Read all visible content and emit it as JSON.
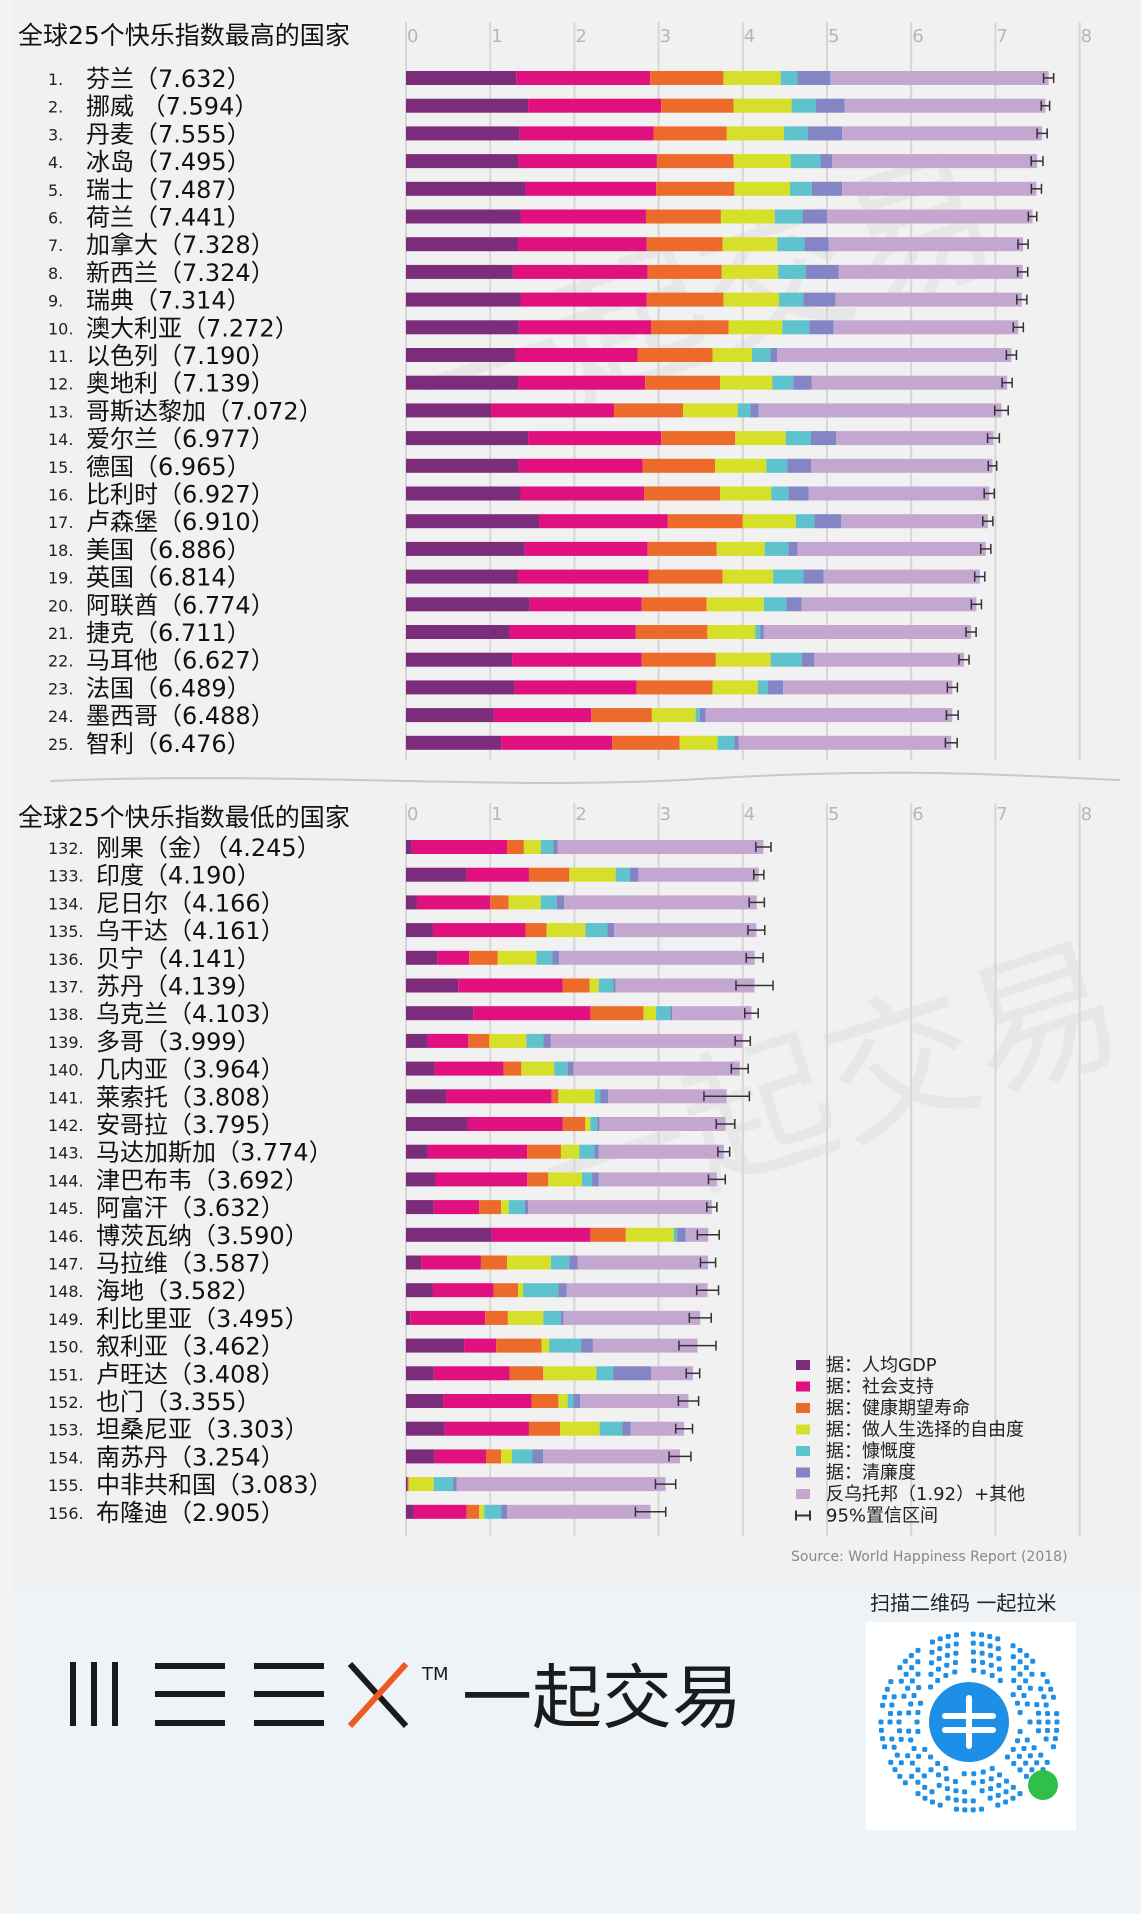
{
  "colors": {
    "gdp": "#7b2d7c",
    "social": "#e0107f",
    "health": "#ec6b2b",
    "freedom": "#d6e02b",
    "generosity": "#5ec3cc",
    "corruption": "#8385c4",
    "dystopia": "#c3a7d1",
    "errorbar": "#333333",
    "grid": "#d6d6d6",
    "brand_accent": "#ee5a24"
  },
  "chart_data": [
    {
      "type": "bar",
      "orientation": "horizontal",
      "stacked": true,
      "title": "全球25个快乐指数最高的国家",
      "xlim": [
        0,
        8
      ],
      "xticks": [
        "0",
        "1",
        "2",
        "3",
        "4",
        "5",
        "6",
        "7",
        "8"
      ],
      "grid": true,
      "rows": [
        {
          "rank": "1.",
          "label": "芬兰（7.632）",
          "score": 7.632,
          "parts": [
            1.31,
            1.59,
            0.87,
            0.68,
            0.2,
            0.39
          ],
          "ci": 0.06
        },
        {
          "rank": "2.",
          "label": "挪威 （7.594）",
          "score": 7.594,
          "parts": [
            1.45,
            1.58,
            0.86,
            0.69,
            0.29,
            0.34
          ],
          "ci": 0.05
        },
        {
          "rank": "3.",
          "label": "丹麦（7.555）",
          "score": 7.555,
          "parts": [
            1.35,
            1.59,
            0.87,
            0.68,
            0.28,
            0.41
          ],
          "ci": 0.06
        },
        {
          "rank": "4.",
          "label": "冰岛（7.495）",
          "score": 7.495,
          "parts": [
            1.34,
            1.64,
            0.91,
            0.68,
            0.35,
            0.14
          ],
          "ci": 0.07
        },
        {
          "rank": "5.",
          "label": "瑞士（7.487）",
          "score": 7.487,
          "parts": [
            1.42,
            1.55,
            0.93,
            0.66,
            0.26,
            0.36
          ],
          "ci": 0.06
        },
        {
          "rank": "6.",
          "label": "荷兰（7.441）",
          "score": 7.441,
          "parts": [
            1.36,
            1.49,
            0.89,
            0.64,
            0.33,
            0.29
          ],
          "ci": 0.05
        },
        {
          "rank": "7.",
          "label": "加拿大（7.328）",
          "score": 7.328,
          "parts": [
            1.33,
            1.53,
            0.9,
            0.65,
            0.32,
            0.29
          ],
          "ci": 0.06
        },
        {
          "rank": "8.",
          "label": "新西兰（7.324）",
          "score": 7.324,
          "parts": [
            1.27,
            1.6,
            0.88,
            0.67,
            0.33,
            0.39
          ],
          "ci": 0.06
        },
        {
          "rank": "9.",
          "label": "瑞典（7.314）",
          "score": 7.314,
          "parts": [
            1.36,
            1.5,
            0.91,
            0.66,
            0.29,
            0.38
          ],
          "ci": 0.06
        },
        {
          "rank": "10.",
          "label": "澳大利亚（7.272）",
          "score": 7.272,
          "parts": [
            1.34,
            1.57,
            0.92,
            0.64,
            0.32,
            0.29
          ],
          "ci": 0.06
        },
        {
          "rank": "11.",
          "label": "以色列（7.190）",
          "score": 7.19,
          "parts": [
            1.3,
            1.45,
            0.89,
            0.47,
            0.22,
            0.08
          ],
          "ci": 0.06
        },
        {
          "rank": "12.",
          "label": "奥地利（7.139）",
          "score": 7.139,
          "parts": [
            1.34,
            1.5,
            0.89,
            0.62,
            0.25,
            0.22
          ],
          "ci": 0.06
        },
        {
          "rank": "13.",
          "label": "哥斯达黎加（7.072）",
          "score": 7.072,
          "parts": [
            1.01,
            1.46,
            0.82,
            0.65,
            0.15,
            0.1
          ],
          "ci": 0.08
        },
        {
          "rank": "14.",
          "label": "爱尔兰（6.977）",
          "score": 6.977,
          "parts": [
            1.45,
            1.58,
            0.88,
            0.6,
            0.3,
            0.3
          ],
          "ci": 0.07
        },
        {
          "rank": "15.",
          "label": "德国（6.965）",
          "score": 6.965,
          "parts": [
            1.34,
            1.47,
            0.86,
            0.61,
            0.25,
            0.28
          ],
          "ci": 0.05
        },
        {
          "rank": "16.",
          "label": "比利时（6.927）",
          "score": 6.927,
          "parts": [
            1.36,
            1.47,
            0.9,
            0.61,
            0.2,
            0.24
          ],
          "ci": 0.06
        },
        {
          "rank": "17.",
          "label": "卢森堡（6.910）",
          "score": 6.91,
          "parts": [
            1.58,
            1.53,
            0.89,
            0.63,
            0.22,
            0.32
          ],
          "ci": 0.06
        },
        {
          "rank": "18.",
          "label": "美国（6.886）",
          "score": 6.886,
          "parts": [
            1.41,
            1.46,
            0.82,
            0.57,
            0.28,
            0.11
          ],
          "ci": 0.06
        },
        {
          "rank": "19.",
          "label": "英国（6.814）",
          "score": 6.814,
          "parts": [
            1.33,
            1.55,
            0.88,
            0.6,
            0.36,
            0.24
          ],
          "ci": 0.06
        },
        {
          "rank": "20.",
          "label": "阿联酋（6.774）",
          "score": 6.774,
          "parts": [
            1.47,
            1.33,
            0.77,
            0.68,
            0.27,
            0.18
          ],
          "ci": 0.06
        },
        {
          "rank": "21.",
          "label": "捷克（6.711）",
          "score": 6.711,
          "parts": [
            1.23,
            1.5,
            0.85,
            0.57,
            0.06,
            0.04
          ],
          "ci": 0.06
        },
        {
          "rank": "22.",
          "label": "马耳他（6.627）",
          "score": 6.627,
          "parts": [
            1.26,
            1.54,
            0.88,
            0.65,
            0.37,
            0.15
          ],
          "ci": 0.06
        },
        {
          "rank": "23.",
          "label": "法国（6.489）",
          "score": 6.489,
          "parts": [
            1.29,
            1.45,
            0.9,
            0.54,
            0.12,
            0.18
          ],
          "ci": 0.06
        },
        {
          "rank": "24.",
          "label": "墨西哥（6.488）",
          "score": 6.488,
          "parts": [
            1.04,
            1.16,
            0.72,
            0.52,
            0.05,
            0.07
          ],
          "ci": 0.07
        },
        {
          "rank": "25.",
          "label": "智利（6.476）",
          "score": 6.476,
          "parts": [
            1.13,
            1.32,
            0.8,
            0.45,
            0.2,
            0.05
          ],
          "ci": 0.07
        }
      ]
    },
    {
      "type": "bar",
      "orientation": "horizontal",
      "stacked": true,
      "title": "全球25个快乐指数最低的国家",
      "xlim": [
        0,
        8
      ],
      "xticks": [
        "0",
        "1",
        "2",
        "3",
        "4",
        "5",
        "6",
        "7",
        "8"
      ],
      "grid": true,
      "rows": [
        {
          "rank": "132.",
          "label": "刚果（金）（4.245）",
          "score": 4.245,
          "parts": [
            0.07,
            1.13,
            0.2,
            0.2,
            0.15,
            0.05
          ],
          "ci": 0.09
        },
        {
          "rank": "133.",
          "label": "印度（4.190）",
          "score": 4.19,
          "parts": [
            0.72,
            0.74,
            0.48,
            0.55,
            0.17,
            0.1
          ],
          "ci": 0.06
        },
        {
          "rank": "134.",
          "label": "尼日尔（4.166）",
          "score": 4.166,
          "parts": [
            0.13,
            0.87,
            0.22,
            0.38,
            0.19,
            0.09
          ],
          "ci": 0.09
        },
        {
          "rank": "135.",
          "label": "乌干达（4.161）",
          "score": 4.161,
          "parts": [
            0.32,
            1.1,
            0.25,
            0.46,
            0.26,
            0.08
          ],
          "ci": 0.1
        },
        {
          "rank": "136.",
          "label": "贝宁（4.141）",
          "score": 4.141,
          "parts": [
            0.37,
            0.38,
            0.34,
            0.46,
            0.19,
            0.08
          ],
          "ci": 0.1
        },
        {
          "rank": "137.",
          "label": "苏丹（4.139）",
          "score": 4.139,
          "parts": [
            0.62,
            1.24,
            0.32,
            0.11,
            0.17,
            0.03
          ],
          "ci": 0.22
        },
        {
          "rank": "138.",
          "label": "乌克兰（4.103）",
          "score": 4.103,
          "parts": [
            0.8,
            1.39,
            0.63,
            0.15,
            0.17,
            0.02
          ],
          "ci": 0.08
        },
        {
          "rank": "139.",
          "label": "多哥（3.999）",
          "score": 3.999,
          "parts": [
            0.26,
            0.48,
            0.25,
            0.44,
            0.2,
            0.09
          ],
          "ci": 0.09
        },
        {
          "rank": "140.",
          "label": "几内亚（3.964）",
          "score": 3.964,
          "parts": [
            0.34,
            0.82,
            0.21,
            0.39,
            0.16,
            0.07
          ],
          "ci": 0.1
        },
        {
          "rank": "141.",
          "label": "莱索托（3.808）",
          "score": 3.808,
          "parts": [
            0.48,
            1.25,
            0.08,
            0.43,
            0.07,
            0.09
          ],
          "ci": 0.27
        },
        {
          "rank": "142.",
          "label": "安哥拉（3.795）",
          "score": 3.795,
          "parts": [
            0.73,
            1.13,
            0.27,
            0.06,
            0.08,
            0.03
          ],
          "ci": 0.11
        },
        {
          "rank": "143.",
          "label": "马达加斯加（3.774）",
          "score": 3.774,
          "parts": [
            0.26,
            1.18,
            0.4,
            0.22,
            0.18,
            0.05
          ],
          "ci": 0.07
        },
        {
          "rank": "144.",
          "label": "津巴布韦（3.692）",
          "score": 3.692,
          "parts": [
            0.35,
            1.09,
            0.25,
            0.4,
            0.12,
            0.08
          ],
          "ci": 0.1
        },
        {
          "rank": "145.",
          "label": "阿富汗（3.632）",
          "score": 3.632,
          "parts": [
            0.33,
            0.54,
            0.26,
            0.09,
            0.19,
            0.04
          ],
          "ci": 0.06
        },
        {
          "rank": "146.",
          "label": "博茨瓦纳（3.590）",
          "score": 3.59,
          "parts": [
            1.02,
            1.17,
            0.42,
            0.57,
            0.04,
            0.1
          ],
          "ci": 0.13
        },
        {
          "rank": "147.",
          "label": "马拉维（3.587）",
          "score": 3.587,
          "parts": [
            0.18,
            0.71,
            0.31,
            0.52,
            0.22,
            0.1
          ],
          "ci": 0.09
        },
        {
          "rank": "148.",
          "label": "海地（3.582）",
          "score": 3.582,
          "parts": [
            0.32,
            0.72,
            0.29,
            0.06,
            0.42,
            0.1
          ],
          "ci": 0.13
        },
        {
          "rank": "149.",
          "label": "利比里亚（3.495）",
          "score": 3.495,
          "parts": [
            0.05,
            0.89,
            0.27,
            0.42,
            0.21,
            0.03
          ],
          "ci": 0.13
        },
        {
          "rank": "150.",
          "label": "叙利亚（3.462）",
          "score": 3.462,
          "parts": [
            0.69,
            0.38,
            0.54,
            0.09,
            0.38,
            0.14
          ],
          "ci": 0.22
        },
        {
          "rank": "151.",
          "label": "卢旺达（3.408）",
          "score": 3.408,
          "parts": [
            0.33,
            0.9,
            0.4,
            0.63,
            0.2,
            0.45
          ],
          "ci": 0.08
        },
        {
          "rank": "152.",
          "label": "也门（3.355）",
          "score": 3.355,
          "parts": [
            0.44,
            1.05,
            0.32,
            0.11,
            0.07,
            0.08
          ],
          "ci": 0.12
        },
        {
          "rank": "153.",
          "label": "坦桑尼亚（3.303）",
          "score": 3.303,
          "parts": [
            0.46,
            1.0,
            0.37,
            0.47,
            0.27,
            0.1
          ],
          "ci": 0.1
        },
        {
          "rank": "154.",
          "label": "南苏丹（3.254）",
          "score": 3.254,
          "parts": [
            0.34,
            0.61,
            0.18,
            0.13,
            0.24,
            0.13
          ],
          "ci": 0.13
        },
        {
          "rank": "155.",
          "label": "中非共和国（3.083）",
          "score": 3.083,
          "parts": [
            0.02,
            0.0,
            0.01,
            0.3,
            0.23,
            0.04
          ],
          "ci": 0.12
        },
        {
          "rank": "156.",
          "label": "布隆迪（2.905）",
          "score": 2.905,
          "parts": [
            0.09,
            0.63,
            0.15,
            0.06,
            0.2,
            0.07
          ],
          "ci": 0.18
        }
      ]
    }
  ],
  "legend": [
    {
      "key": "gdp",
      "label": "据：人均GDP"
    },
    {
      "key": "social",
      "label": "据：社会支持"
    },
    {
      "key": "health",
      "label": "据：健康期望寿命"
    },
    {
      "key": "freedom",
      "label": "据：做人生选择的自由度"
    },
    {
      "key": "generosity",
      "label": "据：慷慨度"
    },
    {
      "key": "corruption",
      "label": "据：清廉度"
    },
    {
      "key": "dystopia",
      "label": "反乌托邦（1.92）+其他"
    },
    {
      "key": "errorbar",
      "label": "95%置信区间"
    }
  ],
  "source": "Source: World Happiness Report (2018)",
  "brand": {
    "text": "一起交易",
    "tm": "TM"
  },
  "qr": {
    "caption": "扫描二维码 一起拉米"
  },
  "watermark": "一起交易"
}
